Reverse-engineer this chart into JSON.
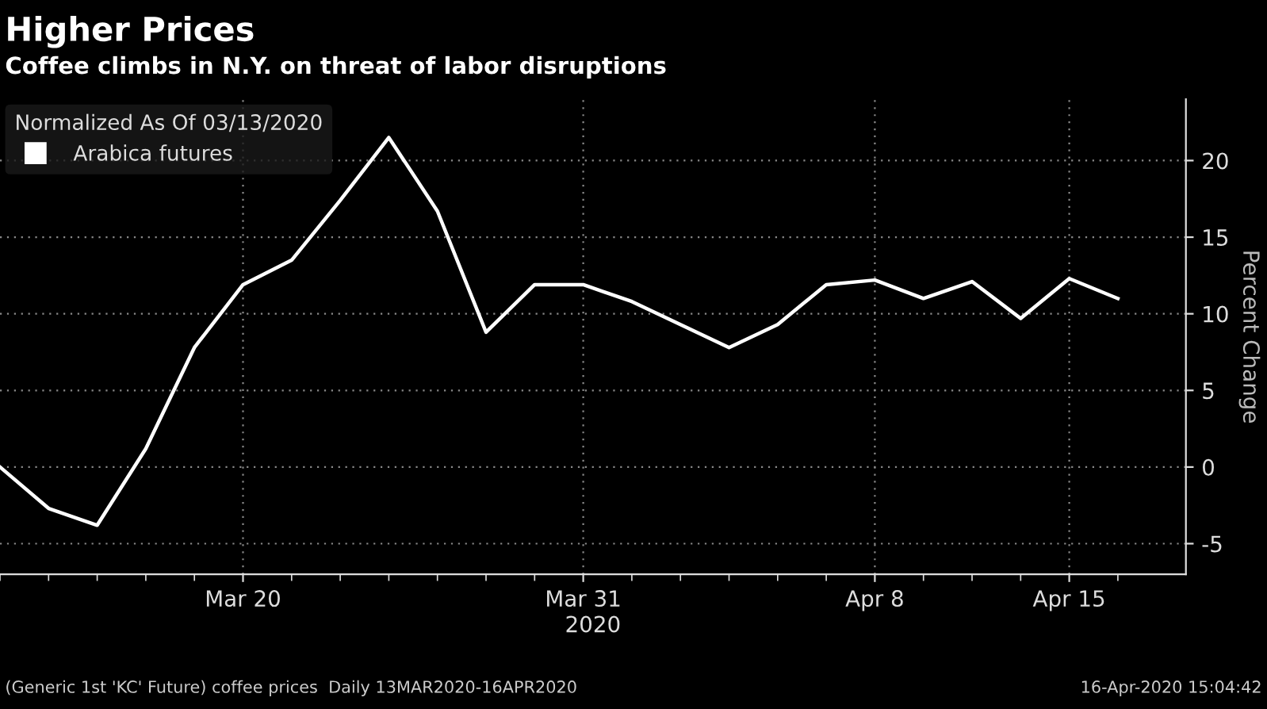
{
  "chart_data": {
    "type": "line",
    "title": "Higher Prices",
    "subtitle": "Coffee climbs in N.Y. on threat of labor disruptions",
    "xlabel": "2020",
    "ylabel": "Percent Change",
    "legend_title": "Normalized As Of 03/13/2020",
    "categories": [
      null,
      null,
      null,
      null,
      null,
      "Mar 20",
      null,
      null,
      null,
      null,
      null,
      null,
      "Mar 31",
      null,
      null,
      null,
      null,
      null,
      "Apr 8",
      null,
      null,
      null,
      "Apr 15",
      null
    ],
    "series": [
      {
        "name": "Arabica futures",
        "color": "#ffffff",
        "values": [
          0,
          -2.7,
          -3.8,
          1.2,
          7.8,
          11.9,
          13.5,
          17.4,
          21.5,
          16.7,
          8.8,
          11.9,
          11.9,
          10.8,
          9.3,
          7.8,
          9.3,
          11.9,
          12.2,
          11.0,
          12.1,
          9.7,
          12.3,
          11.0
        ]
      }
    ],
    "ylim": [
      -7,
      24
    ],
    "yticks": [
      -5,
      0,
      5,
      10,
      15,
      20
    ],
    "grid": true,
    "legend": "top left",
    "marker": "none",
    "line_style": "solid",
    "annotations": [
      "(Generic 1st 'KC' Future) coffee prices  Daily 13MAR2020-16APR2020",
      "16-Apr-2020 15:04:42"
    ]
  }
}
